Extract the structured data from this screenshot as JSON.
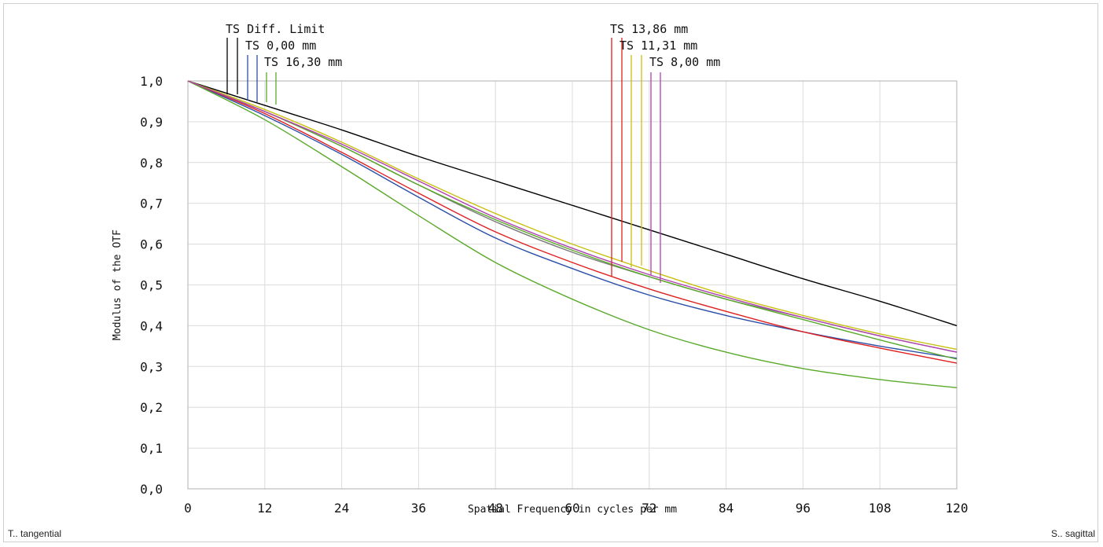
{
  "chart_data": {
    "type": "line",
    "xlabel": "Spatial Frequency in cycles per mm",
    "ylabel": "Modulus of the OTF",
    "xlim": [
      0,
      120
    ],
    "ylim": [
      0,
      1
    ],
    "x_ticks": [
      "0",
      "12",
      "24",
      "36",
      "48",
      "60",
      "72",
      "84",
      "96",
      "108",
      "120"
    ],
    "y_ticks": [
      "0,0",
      "0,1",
      "0,2",
      "0,3",
      "0,4",
      "0,5",
      "0,6",
      "0,7",
      "0,8",
      "0,9",
      "1,0"
    ],
    "grid": true,
    "left_legend": {
      "colors": [
        "#000000",
        "#000000",
        "#2b4fa8",
        "#2b4fa8",
        "#5aaa2a",
        "#5aaa2a"
      ],
      "label_texts": [
        "TS Diff. Limit",
        "TS 0,00 mm",
        "TS 16,30 mm"
      ]
    },
    "right_legend": {
      "colors": [
        "#e02020",
        "#e02020",
        "#c8c010",
        "#c8c010",
        "#b040b0",
        "#b040b0"
      ],
      "label_texts": [
        "TS 13,86 mm",
        "TS 11,31 mm",
        "TS 8,00 mm"
      ]
    },
    "series": [
      {
        "color": "#000000",
        "x": [
          0,
          12,
          24,
          36,
          48,
          60,
          72,
          84,
          96,
          108,
          120
        ],
        "values": [
          1.0,
          0.94,
          0.88,
          0.815,
          0.755,
          0.695,
          0.635,
          0.575,
          0.515,
          0.46,
          0.4
        ]
      },
      {
        "color": "#7a7a7a",
        "x": [
          0,
          12,
          24,
          36,
          48,
          60,
          72,
          84,
          96,
          108,
          120
        ],
        "values": [
          1.0,
          0.925,
          0.84,
          0.745,
          0.655,
          0.58,
          0.52,
          0.465,
          0.42,
          0.375,
          0.335
        ]
      },
      {
        "color": "#2b4fa8",
        "x": [
          0,
          12,
          24,
          36,
          48,
          60,
          72,
          84,
          96,
          108,
          120
        ],
        "values": [
          1.0,
          0.915,
          0.82,
          0.715,
          0.615,
          0.54,
          0.475,
          0.425,
          0.385,
          0.35,
          0.32
        ]
      },
      {
        "color": "#e02020",
        "x": [
          0,
          12,
          24,
          36,
          48,
          60,
          72,
          84,
          96,
          108,
          120
        ],
        "values": [
          1.0,
          0.92,
          0.825,
          0.725,
          0.63,
          0.555,
          0.49,
          0.435,
          0.385,
          0.345,
          0.308
        ]
      },
      {
        "color": "#5aaa2a",
        "x": [
          0,
          12,
          24,
          36,
          48,
          60,
          72,
          84,
          96,
          108,
          120
        ],
        "values": [
          1.0,
          0.905,
          0.79,
          0.67,
          0.555,
          0.465,
          0.39,
          0.335,
          0.295,
          0.268,
          0.248
        ]
      },
      {
        "color": "#5aaa2a",
        "x": [
          0,
          12,
          24,
          36,
          48,
          60,
          72,
          84,
          96,
          108,
          120
        ],
        "values": [
          1.0,
          0.925,
          0.84,
          0.745,
          0.66,
          0.585,
          0.52,
          0.465,
          0.415,
          0.365,
          0.318
        ]
      },
      {
        "color": "#c8c010",
        "x": [
          0,
          12,
          24,
          36,
          48,
          60,
          72,
          84,
          96,
          108,
          120
        ],
        "values": [
          1.0,
          0.93,
          0.85,
          0.76,
          0.675,
          0.6,
          0.535,
          0.475,
          0.425,
          0.38,
          0.342
        ]
      },
      {
        "color": "#b040b0",
        "x": [
          0,
          12,
          24,
          36,
          48,
          60,
          72,
          84,
          96,
          108,
          120
        ],
        "values": [
          1.0,
          0.925,
          0.845,
          0.755,
          0.665,
          0.59,
          0.525,
          0.47,
          0.42,
          0.375,
          0.335
        ]
      }
    ]
  },
  "footer": {
    "left": "T.. tangential",
    "right": "S.. sagittal"
  }
}
